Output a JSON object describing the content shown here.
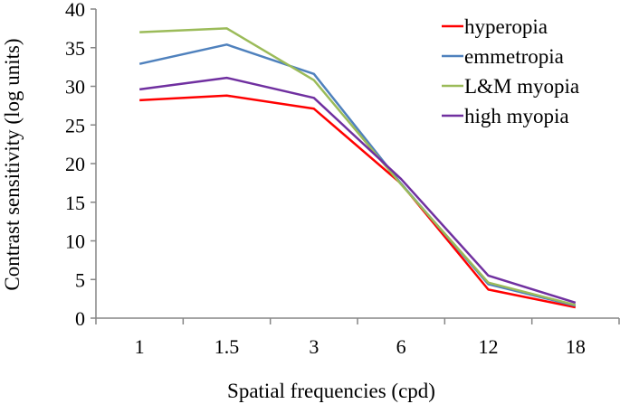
{
  "chart_data": {
    "type": "line",
    "title": "",
    "xlabel": "Spatial frequencies (cpd)",
    "ylabel": "Contrast sensitivity (log units)",
    "categories": [
      "1",
      "1.5",
      "3",
      "6",
      "12",
      "18"
    ],
    "ylim": [
      0,
      40
    ],
    "yticks": [
      "0",
      "5",
      "10",
      "15",
      "20",
      "25",
      "30",
      "35",
      "40"
    ],
    "grid": false,
    "legend_position": "top-right",
    "series": [
      {
        "name": "hyperopia",
        "color": "#ff0000",
        "values": [
          28.2,
          28.8,
          27.1,
          17.4,
          3.7,
          1.4
        ]
      },
      {
        "name": "emmetropia",
        "color": "#4f81bd",
        "values": [
          32.9,
          35.4,
          31.6,
          17.4,
          4.4,
          1.6
        ]
      },
      {
        "name": "L&M myopia",
        "color": "#9bbb59",
        "values": [
          37.0,
          37.5,
          30.8,
          17.3,
          4.6,
          1.7
        ]
      },
      {
        "name": "high myopia",
        "color": "#7030a0",
        "values": [
          29.6,
          31.1,
          28.5,
          18.0,
          5.5,
          2.0
        ]
      }
    ]
  }
}
